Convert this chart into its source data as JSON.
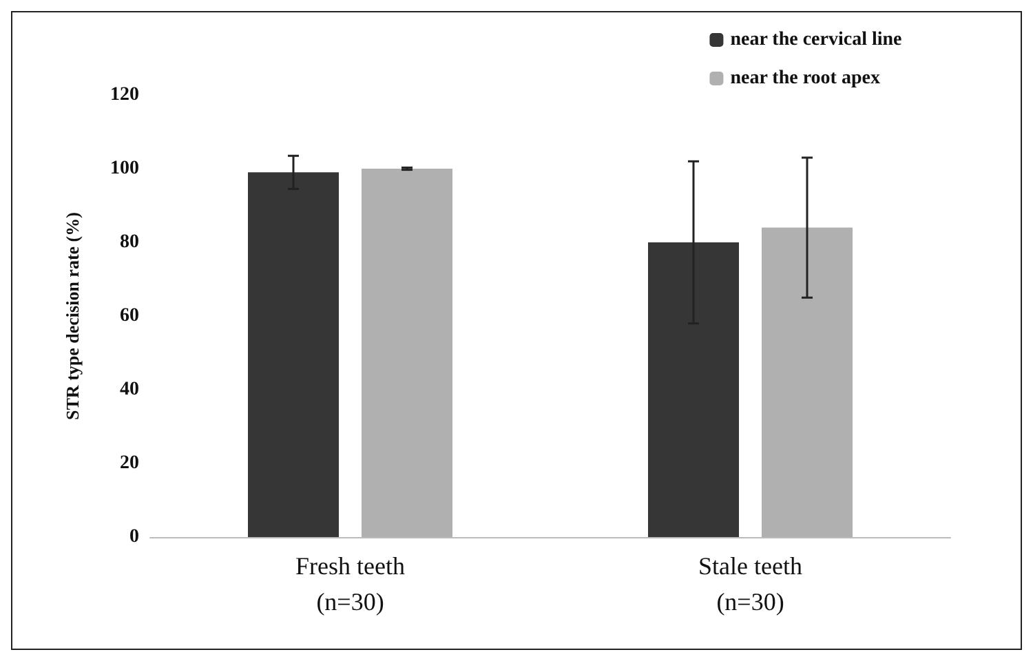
{
  "chart_data": {
    "type": "bar",
    "ylabel": "STR type decision rate (%)",
    "categories": [
      "Fresh teeth\n(n=30)",
      "Stale teeth\n(n=30)"
    ],
    "series": [
      {
        "name": "near the cervical line",
        "color": "#363636",
        "values": [
          99,
          80
        ],
        "errors": [
          4.5,
          22
        ]
      },
      {
        "name": "near the root apex",
        "color": "#b0b0b0",
        "values": [
          100,
          84
        ],
        "errors": [
          0.3,
          19
        ]
      }
    ],
    "ylim": [
      0,
      120
    ],
    "yticks": [
      0,
      20,
      40,
      60,
      80,
      100,
      120
    ],
    "grid": false,
    "legend": "top right"
  }
}
